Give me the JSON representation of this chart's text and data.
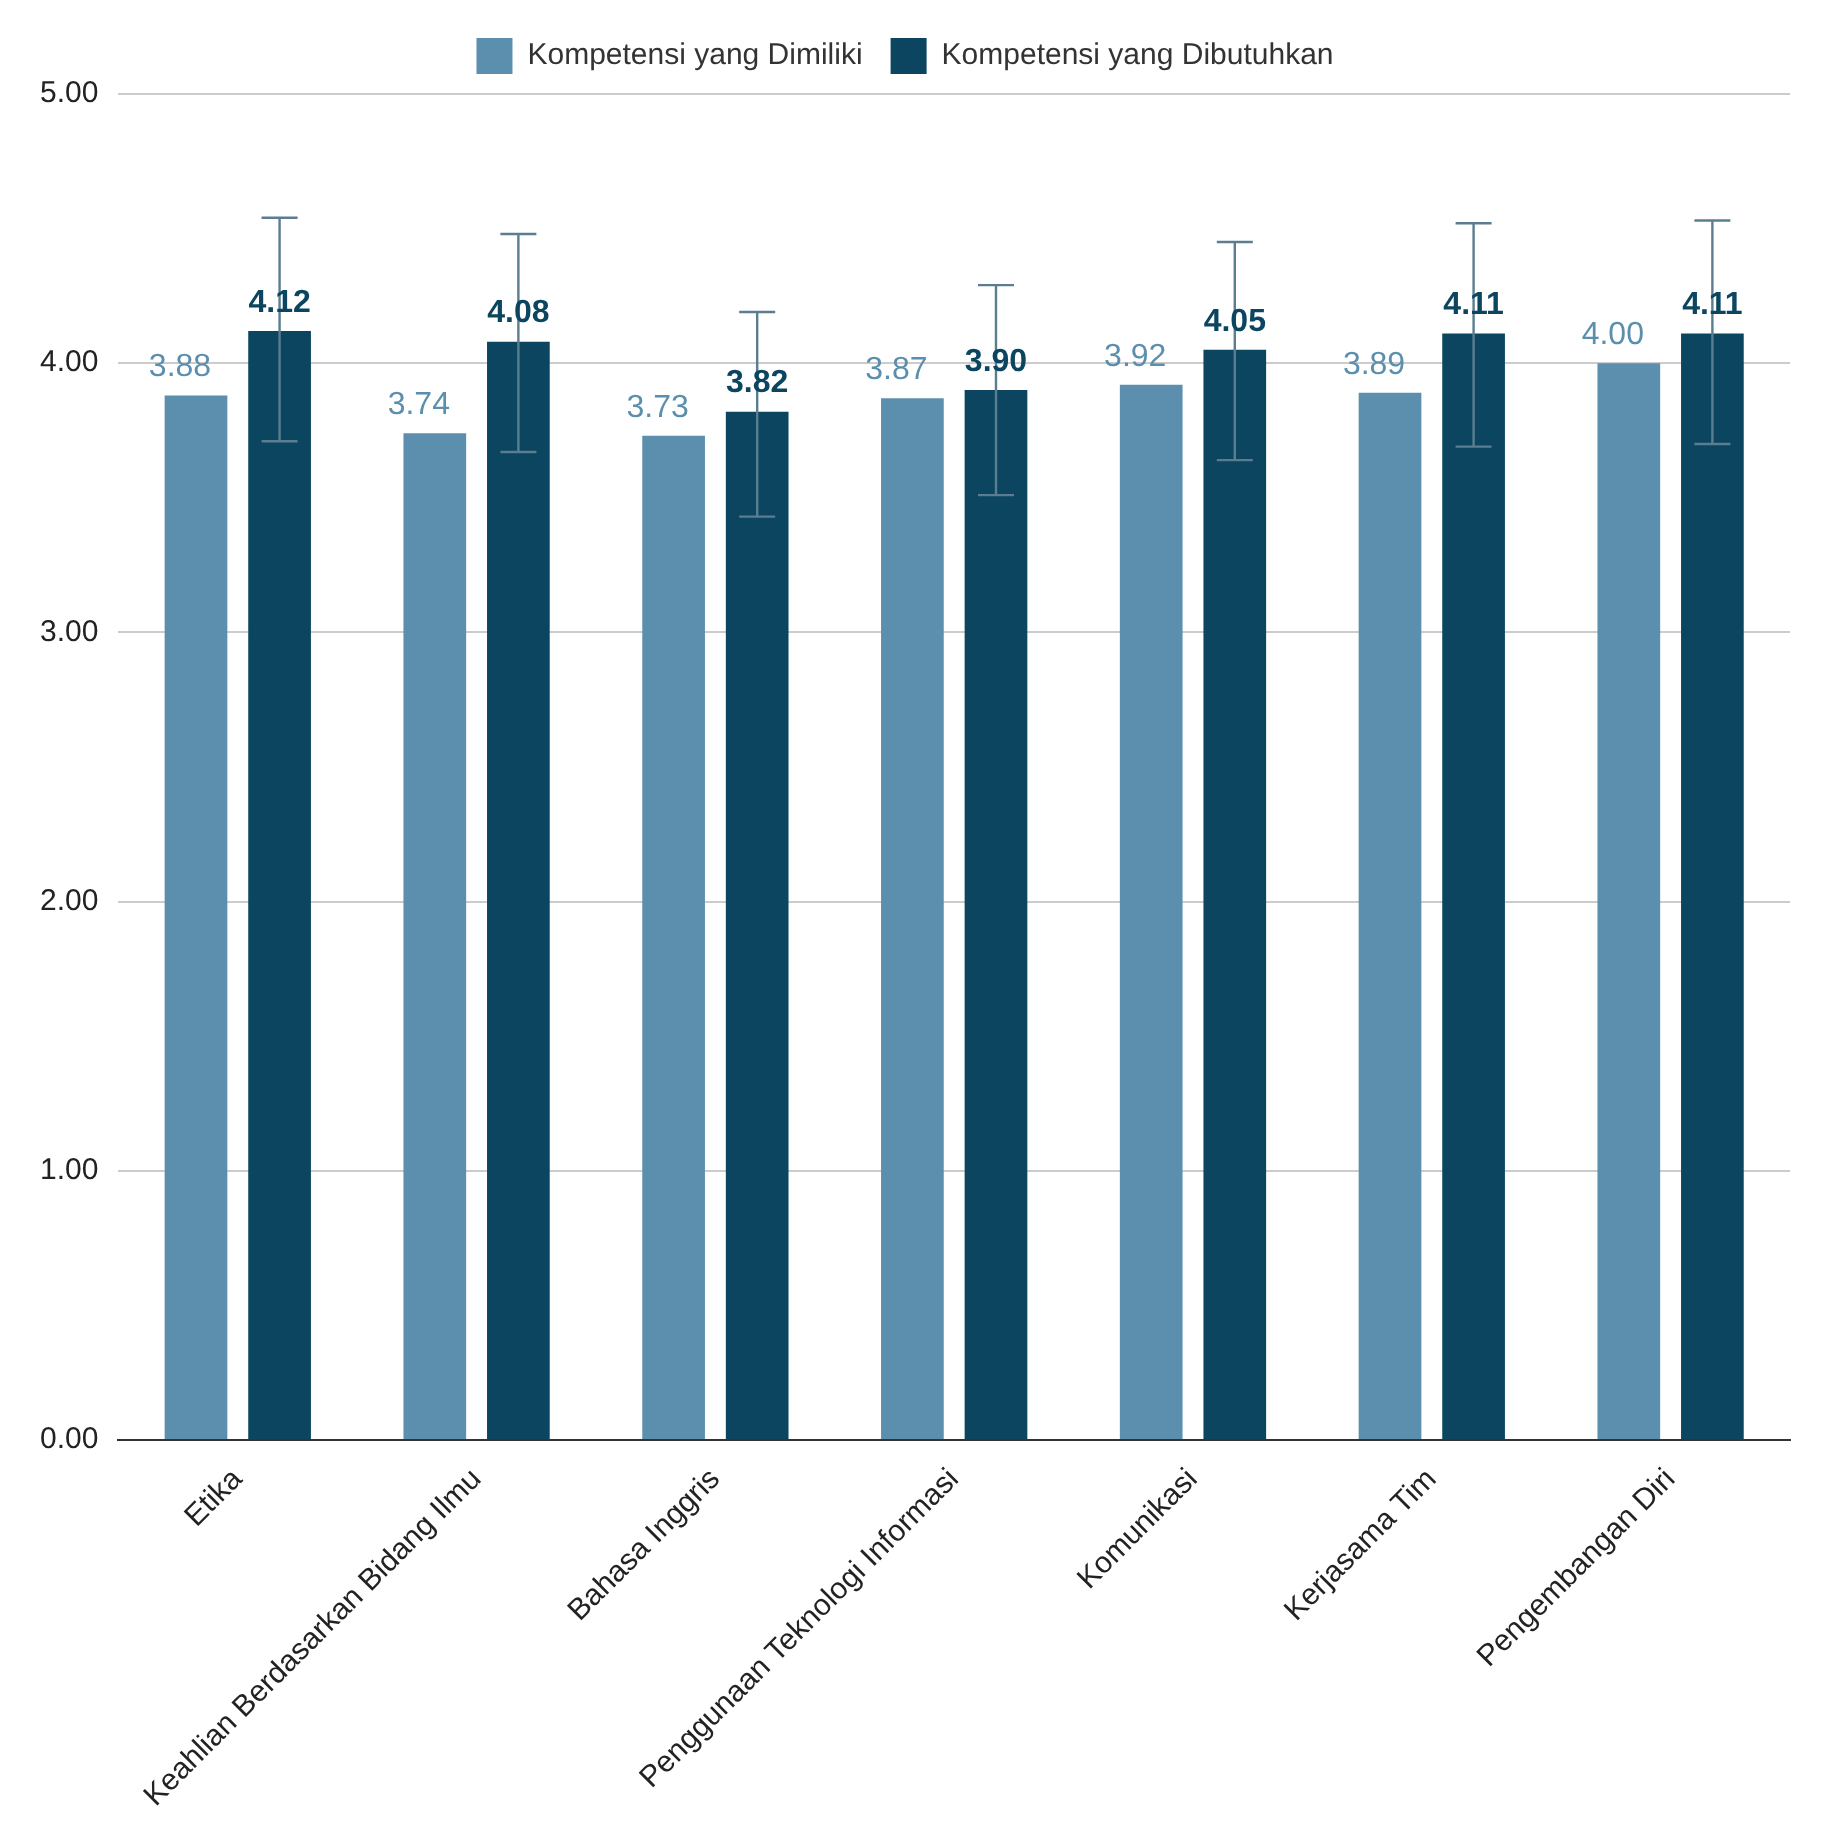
{
  "chart_data": {
    "type": "bar",
    "categories": [
      "Etika",
      "Keahlian Berdasarkan Bidang Ilmu",
      "Bahasa Inggris",
      "Penggunaan Teknologi Informasi",
      "Komunikasi",
      "Kerjasama Tim",
      "Pengembangan Diri"
    ],
    "series": [
      {
        "name": "Kompetensi yang Dimiliki",
        "color": "#5b8fad",
        "values": [
          3.88,
          3.74,
          3.73,
          3.87,
          3.92,
          3.89,
          4.0
        ],
        "value_labels": [
          "3.88",
          "3.74",
          "3.73",
          "3.87",
          "3.92",
          "3.89",
          "4.00"
        ]
      },
      {
        "name": "Kompetensi yang Dibutuhkan",
        "color": "#0b4560",
        "values": [
          4.12,
          4.08,
          3.82,
          3.9,
          4.05,
          4.11,
          4.11
        ],
        "value_labels": [
          "4.12",
          "4.08",
          "3.82",
          "3.90",
          "4.05",
          "4.11",
          "4.11"
        ],
        "errors": [
          [
            3.71,
            4.54
          ],
          [
            3.67,
            4.48
          ],
          [
            3.43,
            4.19
          ],
          [
            3.51,
            4.29
          ],
          [
            3.64,
            4.45
          ],
          [
            3.69,
            4.52
          ],
          [
            3.7,
            4.53
          ]
        ]
      }
    ],
    "ylim": [
      0,
      5
    ],
    "yticks": [
      {
        "value": 0,
        "label": "0.00"
      },
      {
        "value": 1,
        "label": "1.00"
      },
      {
        "value": 2,
        "label": "2.00"
      },
      {
        "value": 3,
        "label": "3.00"
      },
      {
        "value": 4,
        "label": "4.00"
      },
      {
        "value": 5,
        "label": "5.00"
      }
    ],
    "grid": "y",
    "legend": "top"
  }
}
